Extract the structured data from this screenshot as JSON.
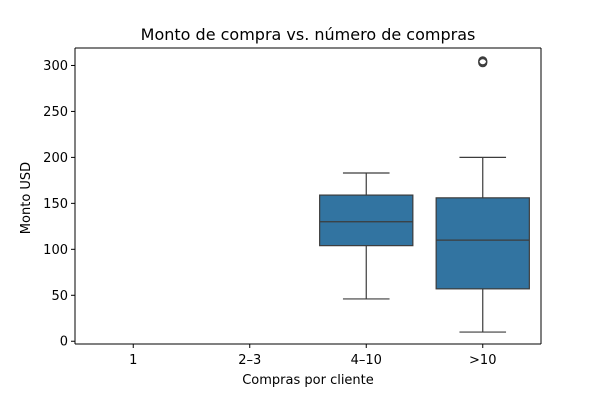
{
  "chart_data": {
    "type": "box",
    "title": "Monto de compra vs. número de compras",
    "xlabel": "Compras por cliente",
    "ylabel": "Monto USD",
    "categories": [
      "1",
      "2–3",
      "4–10",
      ">10"
    ],
    "ylim": [
      -3,
      319
    ],
    "yticks": [
      0,
      50,
      100,
      150,
      200,
      250,
      300
    ],
    "grid": false,
    "box_color": "#3274a1",
    "line_color": "#3c3c3c",
    "boxes": [
      {
        "category": "1",
        "min": null,
        "q1": null,
        "median": null,
        "q3": null,
        "max": null,
        "outliers": []
      },
      {
        "category": "2–3",
        "min": null,
        "q1": null,
        "median": null,
        "q3": null,
        "max": null,
        "outliers": []
      },
      {
        "category": "4–10",
        "min": 46,
        "q1": 104,
        "median": 130,
        "q3": 159,
        "max": 183,
        "outliers": []
      },
      {
        "category": ">10",
        "min": 10,
        "q1": 57,
        "median": 110,
        "q3": 156,
        "max": 200,
        "outliers": [
          303,
          304,
          305
        ]
      }
    ]
  }
}
